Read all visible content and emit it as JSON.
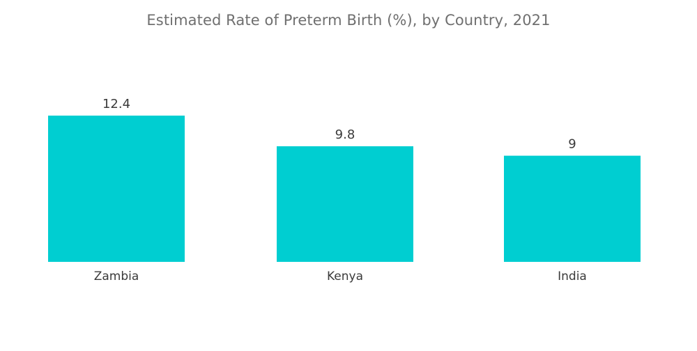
{
  "chart_data": {
    "type": "bar",
    "title": "Estimated Rate of Preterm Birth (%), by Country, 2021",
    "categories": [
      "Zambia",
      "Kenya",
      "India"
    ],
    "values": [
      12.4,
      9.8,
      9
    ],
    "value_labels": [
      "12.4",
      "9.8",
      "9"
    ],
    "xlabel": "",
    "ylabel": "",
    "ylim": [
      0,
      12.4
    ],
    "grid": false,
    "legend": "none",
    "bar_color": "#00CED1"
  }
}
